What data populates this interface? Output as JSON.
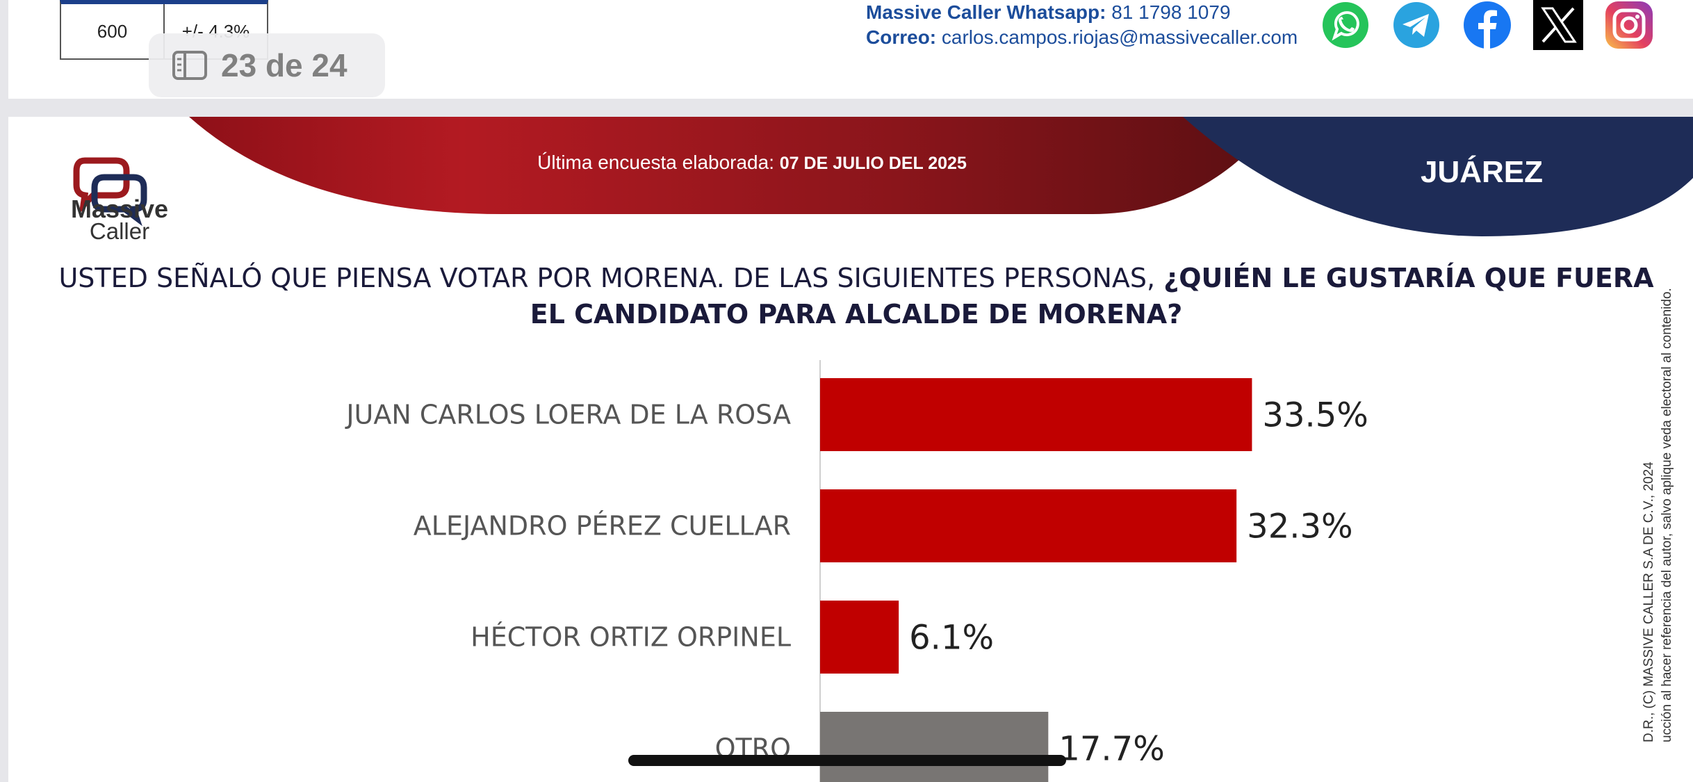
{
  "top": {
    "table": {
      "sample": "600",
      "margin": "+/- 4.3%"
    },
    "page_indicator": "23 de 24",
    "contact": {
      "whatsapp_label": "Massive Caller Whatsapp:",
      "whatsapp_value": "81 1798 1079",
      "email_label": "Correo:",
      "email_value": "carlos.campos.riojas@massivecaller.com"
    },
    "socials": [
      "whatsapp-icon",
      "telegram-icon",
      "facebook-icon",
      "x-icon",
      "instagram-icon"
    ]
  },
  "slide": {
    "logo": {
      "word1": "Massive",
      "word2": "Caller"
    },
    "survey_label": "Última encuesta elaborada:",
    "survey_date": "07 DE JULIO DEL 2025",
    "region": "JUÁREZ",
    "question_normal": "USTED SEÑALÓ QUE PIENSA VOTAR POR MORENA. DE LAS SIGUIENTES PERSONAS, ",
    "question_bold_1": "¿QUIÉN LE GUSTARÍA QUE FUERA",
    "question_bold_2": "EL CANDIDATO PARA ALCALDE DE MORENA?",
    "copyright_1": "D.R., (C) MASSIVE CALLER S.A DE C.V., 2024",
    "copyright_2": "ucción al hacer referencia del autor, salvo aplique veda electoral al contenido."
  },
  "colors": {
    "red": "#c00000",
    "gray": "#787573",
    "navy": "#1e2c57",
    "banner_red": "#a3151d"
  },
  "chart_data": {
    "type": "bar",
    "orientation": "horizontal",
    "categories": [
      "JUAN CARLOS LOERA DE LA ROSA",
      "ALEJANDRO PÉREZ CUELLAR",
      "HÉCTOR ORTIZ ORPINEL",
      "OTRO"
    ],
    "values": [
      33.5,
      32.3,
      6.1,
      17.7
    ],
    "labels": [
      "33.5%",
      "32.3%",
      "6.1%",
      "17.7%"
    ],
    "bar_colors": [
      "#c00000",
      "#c00000",
      "#c00000",
      "#787573"
    ],
    "unit": "%",
    "xlim": [
      0,
      35
    ]
  }
}
